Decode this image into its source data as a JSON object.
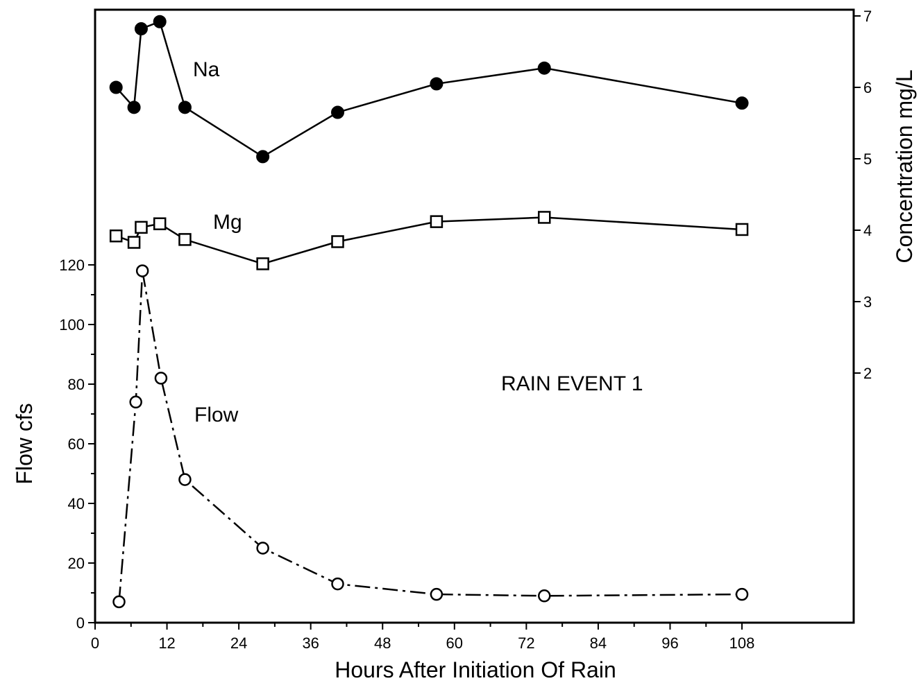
{
  "chart_data": {
    "type": "line",
    "annotation": "RAIN EVENT 1",
    "x_axis": {
      "label": "Hours After Initiation Of Rain",
      "range": [
        0,
        112
      ],
      "ticks": [
        0,
        12,
        24,
        36,
        48,
        60,
        72,
        84,
        96,
        108
      ]
    },
    "y_left": {
      "label": "Flow  cfs",
      "range": [
        0,
        120
      ],
      "ticks": [
        0,
        20,
        40,
        60,
        80,
        100,
        120
      ]
    },
    "y_right": {
      "label": "Concentration   mg/L",
      "ticks": [
        2,
        3,
        4,
        5,
        6,
        7
      ]
    },
    "series": [
      {
        "name": "Na",
        "axis": "right",
        "marker": "filled-circle",
        "line": "solid",
        "x": [
          3.5,
          6.5,
          7.7,
          10.8,
          15,
          28,
          40.5,
          57,
          75,
          108
        ],
        "values": [
          6.0,
          5.72,
          6.82,
          6.92,
          5.72,
          5.03,
          5.65,
          6.05,
          6.27,
          5.78
        ]
      },
      {
        "name": "Mg",
        "axis": "right",
        "marker": "open-square",
        "line": "solid",
        "x": [
          3.5,
          6.5,
          7.7,
          10.8,
          15,
          28,
          40.5,
          57,
          75,
          108
        ],
        "values": [
          3.92,
          3.83,
          4.04,
          4.09,
          3.87,
          3.53,
          3.84,
          4.12,
          4.18,
          4.01
        ]
      },
      {
        "name": "Flow",
        "axis": "left",
        "marker": "open-circle",
        "line": "dashed",
        "x": [
          4,
          6.8,
          7.9,
          11,
          15,
          28,
          40.5,
          57,
          75,
          108
        ],
        "values": [
          7,
          74,
          118,
          82,
          48,
          25,
          13,
          9.5,
          9,
          9.5
        ]
      }
    ]
  }
}
